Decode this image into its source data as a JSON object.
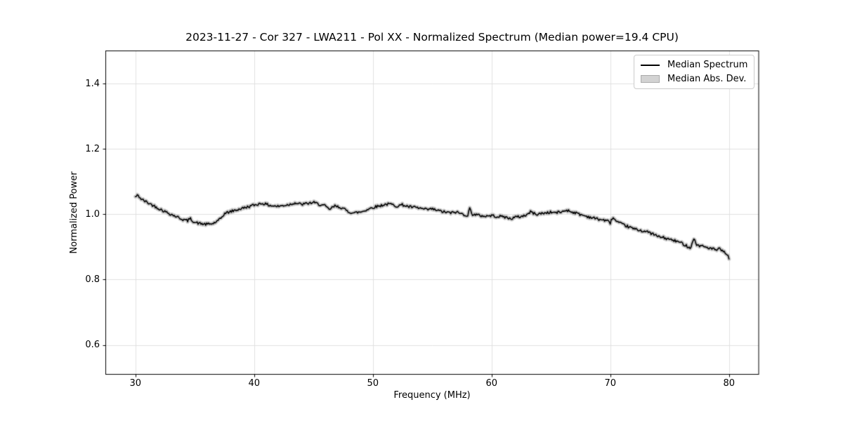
{
  "figure": {
    "background": "#ffffff"
  },
  "legend": {
    "items": [
      {
        "label": "Median Spectrum",
        "swatch": "line",
        "color": "#000000"
      },
      {
        "label": "Median Abs. Dev.",
        "swatch": "patch",
        "fill": "#d3d3d3",
        "edge": "#ababab"
      }
    ]
  },
  "chart_data": {
    "type": "line",
    "title": "2023-11-27 - Cor 327 - LWA211 - Pol XX - Normalized Spectrum (Median power=19.4 CPU)",
    "xlabel": "Frequency (MHz)",
    "ylabel": "Normalized Power",
    "xlim": [
      27.5,
      82.5
    ],
    "ylim": [
      0.51,
      1.5
    ],
    "xticks": [
      30,
      40,
      50,
      60,
      70,
      80
    ],
    "yticks": [
      0.6,
      0.8,
      1.0,
      1.2,
      1.4
    ],
    "grid": true,
    "grid_color": "#e0e0e0",
    "axis_color": "#000000",
    "legend_position": "upper right",
    "series": [
      {
        "name": "Median Spectrum",
        "type": "line",
        "color": "#000000",
        "line_width": 1.6,
        "x": [
          30.0,
          30.2,
          30.5,
          31.0,
          31.5,
          32.0,
          32.5,
          33.0,
          33.5,
          34.0,
          34.4,
          34.6,
          35.0,
          35.5,
          36.0,
          36.5,
          37.0,
          37.3,
          37.5,
          38.0,
          38.5,
          39.0,
          39.5,
          40.0,
          40.7,
          41.0,
          41.5,
          42.0,
          42.5,
          43.0,
          43.4,
          44.0,
          44.5,
          45.0,
          45.5,
          46.0,
          46.3,
          46.8,
          47.3,
          48.0,
          48.4,
          49.0,
          49.5,
          50.0,
          50.5,
          51.0,
          51.5,
          52.0,
          52.5,
          53.0,
          53.5,
          54.0,
          54.5,
          55.0,
          55.5,
          56.0,
          56.6,
          57.0,
          57.5,
          58.0,
          58.15,
          58.4,
          59.0,
          59.5,
          60.0,
          60.5,
          61.0,
          61.6,
          62.0,
          62.5,
          63.0,
          63.3,
          63.7,
          64.0,
          64.5,
          65.0,
          65.5,
          66.0,
          66.3,
          66.7,
          67.0,
          67.5,
          68.0,
          68.5,
          69.0,
          69.5,
          69.9,
          70.0,
          70.2,
          70.5,
          70.8,
          71.0,
          71.5,
          72.0,
          72.5,
          73.0,
          73.5,
          74.0,
          74.5,
          75.0,
          75.5,
          76.0,
          76.5,
          76.8,
          77.0,
          77.3,
          77.7,
          78.0,
          78.5,
          79.0,
          79.2,
          79.5,
          79.8,
          80.0
        ],
        "y": [
          1.053,
          1.058,
          1.046,
          1.036,
          1.027,
          1.017,
          1.008,
          1.0,
          0.992,
          0.984,
          0.98,
          0.987,
          0.975,
          0.971,
          0.969,
          0.971,
          0.98,
          0.992,
          1.002,
          1.008,
          1.013,
          1.018,
          1.023,
          1.028,
          1.034,
          1.03,
          1.026,
          1.024,
          1.027,
          1.03,
          1.035,
          1.03,
          1.033,
          1.036,
          1.03,
          1.025,
          1.014,
          1.025,
          1.021,
          1.007,
          1.004,
          1.007,
          1.014,
          1.021,
          1.025,
          1.03,
          1.031,
          1.025,
          1.029,
          1.023,
          1.021,
          1.018,
          1.014,
          1.016,
          1.011,
          1.007,
          1.004,
          1.007,
          1.001,
          0.996,
          1.018,
          1.0,
          0.996,
          0.994,
          0.996,
          0.993,
          0.993,
          0.986,
          0.991,
          0.993,
          0.999,
          1.008,
          1.0,
          1.001,
          1.004,
          1.006,
          1.005,
          1.008,
          1.013,
          1.008,
          1.005,
          0.999,
          0.994,
          0.989,
          0.985,
          0.982,
          0.977,
          0.974,
          0.991,
          0.978,
          0.972,
          0.969,
          0.962,
          0.955,
          0.951,
          0.947,
          0.941,
          0.932,
          0.928,
          0.923,
          0.918,
          0.912,
          0.902,
          0.897,
          0.928,
          0.905,
          0.903,
          0.9,
          0.895,
          0.89,
          0.894,
          0.885,
          0.88,
          0.863
        ],
        "noise_amplitude": 0.0042,
        "noise_seed": 42,
        "sample_step_mhz": 0.08
      },
      {
        "name": "Median Abs. Dev.",
        "type": "band",
        "follows": "Median Spectrum",
        "color": "#c9c9c9",
        "band_halfwidth": 0.004
      }
    ]
  }
}
